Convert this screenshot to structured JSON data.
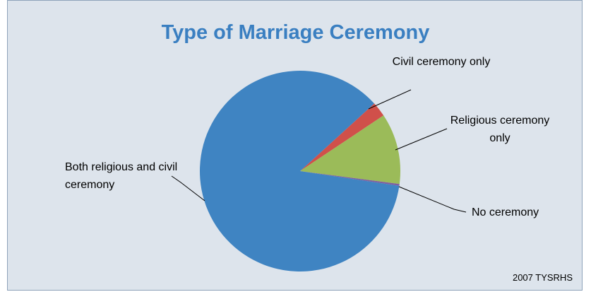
{
  "chart_data": {
    "type": "pie",
    "title": "Type of Marriage Ceremony",
    "categories": [
      "Civil ceremony only",
      "Religious ceremony only",
      "No ceremony",
      "Both religious and civil ceremony"
    ],
    "values": [
      2.4,
      11.4,
      0.3,
      85.9
    ],
    "colors": [
      "#d0504a",
      "#9bbb59",
      "#7f5fa0",
      "#3f84c2"
    ],
    "source": "2007 TYSRHS"
  }
}
